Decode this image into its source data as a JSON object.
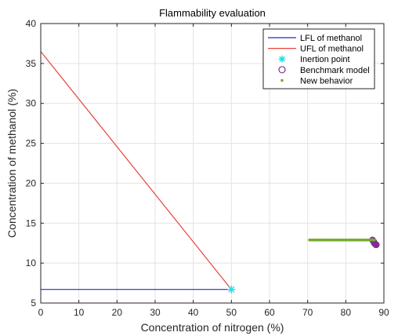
{
  "chart_data": {
    "type": "line",
    "title": "Flammability evaluation",
    "xlabel": "Concentration of nitrogen (%)",
    "ylabel": "Concentration of methanol (%)",
    "xlim": [
      0,
      90
    ],
    "ylim": [
      5,
      40
    ],
    "xticks": [
      "0",
      "10",
      "20",
      "30",
      "40",
      "50",
      "60",
      "70",
      "80",
      "90"
    ],
    "yticks": [
      "5",
      "10",
      "15",
      "20",
      "25",
      "30",
      "35",
      "40"
    ],
    "grid": true,
    "legend_position": "top-right",
    "series": [
      {
        "name": "LFL of methanol",
        "kind": "line",
        "color": "#1f2fbf",
        "x": [
          0,
          50
        ],
        "y": [
          6.7,
          6.7
        ]
      },
      {
        "name": "UFL of methanol",
        "kind": "line",
        "color": "#e8413a",
        "x": [
          0,
          50
        ],
        "y": [
          36.5,
          6.7
        ]
      },
      {
        "name": "Inertion point",
        "kind": "marker",
        "marker": "star",
        "color": "#22dfe8",
        "x": [
          50
        ],
        "y": [
          6.7
        ]
      },
      {
        "name": "Benchmark model",
        "kind": "marker",
        "marker": "circle",
        "color": "#7e2f8e",
        "x": [
          87,
          87.3,
          87.5,
          87.7,
          87.9,
          88.0
        ],
        "y": [
          12.9,
          12.7,
          12.5,
          12.4,
          12.3,
          12.3
        ]
      },
      {
        "name": "New behavior",
        "kind": "dots",
        "marker": "dot",
        "color": "#77ac30",
        "x_range": [
          70.5,
          87.5
        ],
        "y": 12.9
      }
    ]
  }
}
